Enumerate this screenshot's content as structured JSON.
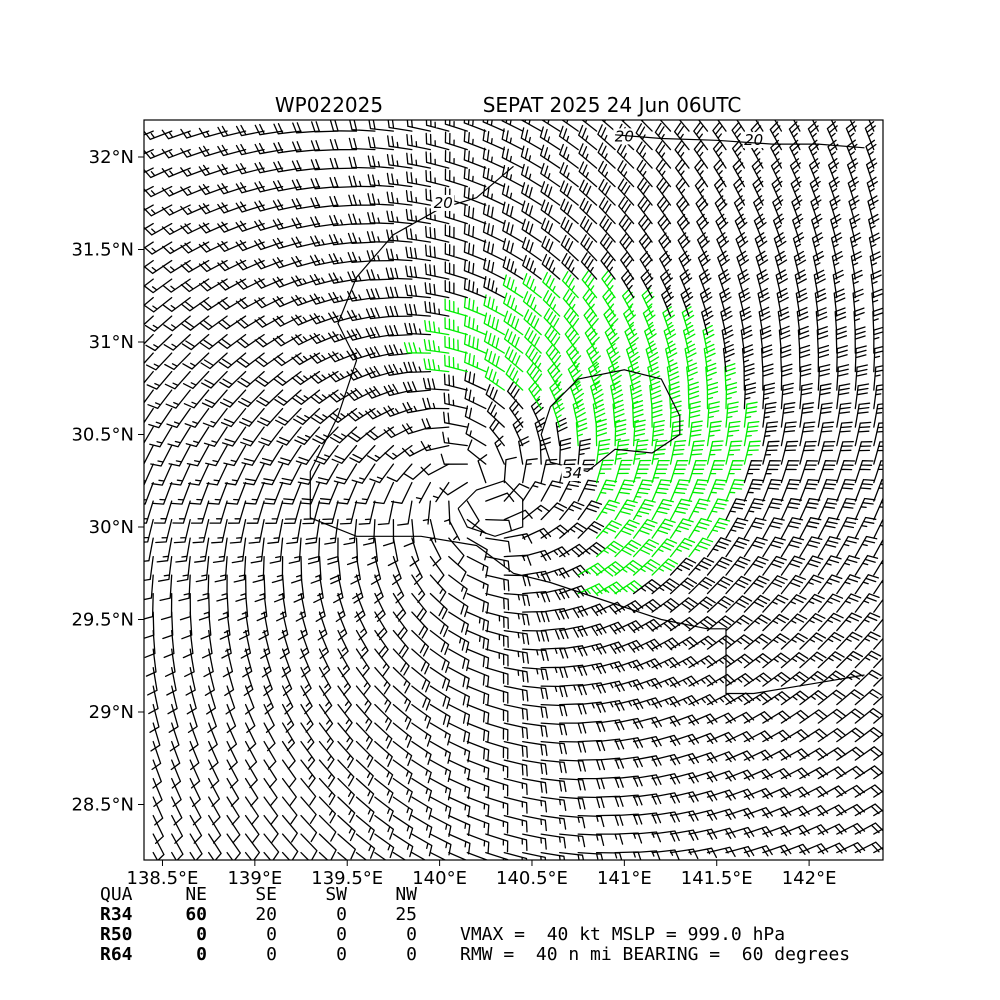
{
  "title_left": "WP022025",
  "title_right": "SEPAT 2025 24 Jun 06UTC",
  "chart_data": {
    "type": "wind-barb map",
    "storm_id": "WP022025",
    "storm_name": "SEPAT",
    "datetime": "2025 24 Jun 06UTC",
    "xlim": [
      138.4,
      142.4
    ],
    "ylim": [
      28.2,
      32.2
    ],
    "x_ticks": [
      138.5,
      139.0,
      139.5,
      140.0,
      140.5,
      141.0,
      141.5,
      142.0
    ],
    "x_tick_labels": [
      "138.5°E",
      "139°E",
      "139.5°E",
      "140°E",
      "140.5°E",
      "141°E",
      "141.5°E",
      "142°E"
    ],
    "y_ticks": [
      28.5,
      29.0,
      29.5,
      30.0,
      30.5,
      31.0,
      31.5,
      32.0
    ],
    "y_tick_labels": [
      "28.5°N",
      "29°N",
      "29.5°N",
      "30°N",
      "30.5°N",
      "31°N",
      "31.5°N",
      "32°N"
    ],
    "grid": false,
    "center": {
      "lon": 140.2,
      "lat": 30.2
    },
    "vmax_kt": 40,
    "mslp_hpa": 999.0,
    "rmw_nmi": 40,
    "bearing_deg": 60,
    "color_thresholds": [
      {
        "min_kt": 0,
        "color": "#000000"
      },
      {
        "min_kt": 34,
        "color": "#00ee00"
      },
      {
        "min_kt": 50,
        "color": "#f0c020"
      }
    ],
    "contours": [
      {
        "label": "20",
        "label_positions": [
          {
            "lon": 141.0,
            "lat": 32.09
          },
          {
            "lon": 141.7,
            "lat": 32.07
          },
          {
            "lon": 140.02,
            "lat": 31.73
          }
        ],
        "points": [
          [
            140.4,
            31.95
          ],
          [
            140.2,
            31.78
          ],
          [
            140.0,
            31.72
          ],
          [
            139.75,
            31.58
          ],
          [
            139.55,
            31.35
          ],
          [
            139.45,
            31.1
          ],
          [
            139.55,
            30.9
          ],
          [
            139.45,
            30.6
          ],
          [
            139.3,
            30.3
          ],
          [
            139.3,
            30.05
          ],
          [
            139.55,
            29.95
          ],
          [
            139.9,
            29.95
          ],
          [
            140.2,
            29.9
          ],
          [
            140.4,
            29.75
          ],
          [
            140.6,
            29.7
          ],
          [
            140.9,
            29.6
          ],
          [
            141.2,
            29.5
          ],
          [
            141.45,
            29.45
          ],
          [
            141.55,
            29.45
          ],
          [
            141.55,
            29.1
          ],
          [
            141.7,
            29.1
          ],
          [
            142.0,
            29.15
          ],
          [
            142.3,
            29.2
          ]
        ]
      },
      {
        "label": "20",
        "label_positions": [],
        "points": [
          [
            140.95,
            32.12
          ],
          [
            141.2,
            32.1
          ],
          [
            141.5,
            32.09
          ],
          [
            141.8,
            32.07
          ],
          [
            142.05,
            32.07
          ],
          [
            142.3,
            32.05
          ]
        ]
      },
      {
        "label": "34",
        "label_positions": [
          {
            "lon": 140.72,
            "lat": 30.27
          }
        ],
        "points": [
          [
            140.6,
            30.65
          ],
          [
            140.75,
            30.8
          ],
          [
            141.0,
            30.85
          ],
          [
            141.2,
            30.8
          ],
          [
            141.3,
            30.6
          ],
          [
            141.3,
            30.5
          ],
          [
            141.15,
            30.4
          ],
          [
            140.95,
            30.42
          ],
          [
            140.8,
            30.3
          ],
          [
            140.6,
            30.35
          ],
          [
            140.55,
            30.5
          ],
          [
            140.6,
            30.65
          ]
        ]
      },
      {
        "label": "",
        "label_positions": [],
        "points": [
          [
            140.1,
            30.1
          ],
          [
            140.2,
            30.2
          ],
          [
            140.35,
            30.25
          ],
          [
            140.45,
            30.15
          ],
          [
            140.45,
            30.0
          ],
          [
            140.3,
            29.95
          ],
          [
            140.15,
            30.0
          ],
          [
            140.1,
            30.1
          ]
        ]
      }
    ]
  }
}
